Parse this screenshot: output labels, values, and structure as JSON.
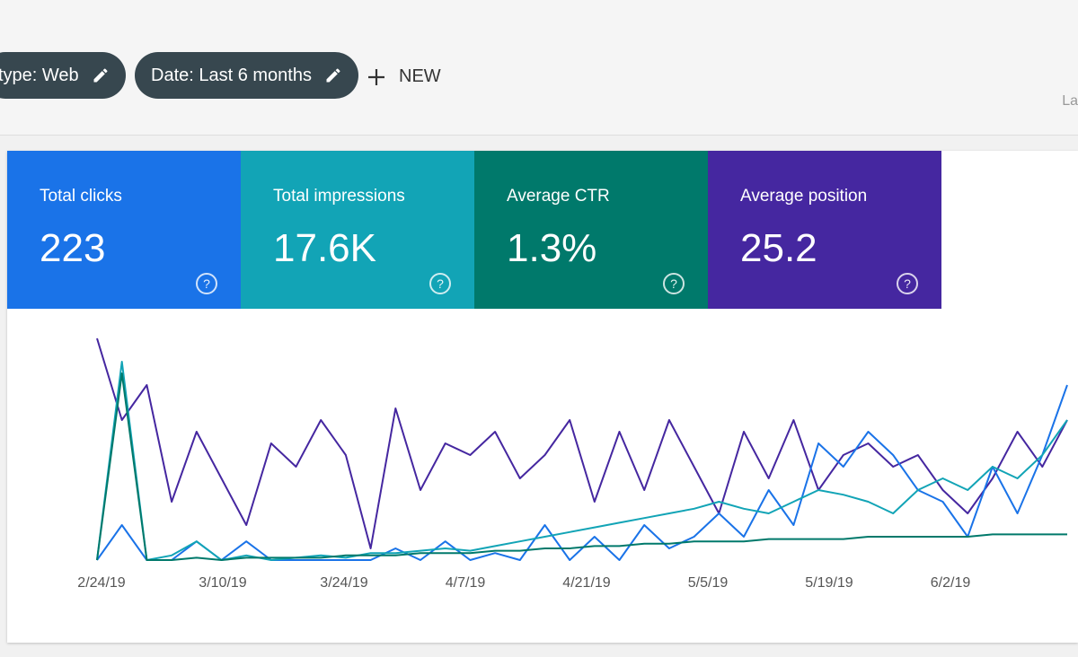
{
  "filters": {
    "type_chip": "type: Web",
    "date_chip": "Date: Last 6 months",
    "new_button": "NEW",
    "cut_text": "La"
  },
  "metrics": [
    {
      "label": "Total clicks",
      "value": "223",
      "color": "#1a73e8"
    },
    {
      "label": "Total impressions",
      "value": "17.6K",
      "color": "#12a4b6"
    },
    {
      "label": "Average CTR",
      "value": "1.3%",
      "color": "#00796b"
    },
    {
      "label": "Average position",
      "value": "25.2",
      "color": "#4527a0"
    }
  ],
  "chart_data": {
    "type": "line",
    "x_labels": [
      "2/24/19",
      "3/10/19",
      "3/24/19",
      "4/7/19",
      "4/21/19",
      "5/5/19",
      "5/19/19",
      "6/2/19"
    ],
    "ylim": [
      0,
      100
    ],
    "series": [
      {
        "color": "#4527a0",
        "values": [
          95,
          60,
          75,
          25,
          55,
          35,
          15,
          50,
          40,
          60,
          45,
          5,
          65,
          30,
          50,
          45,
          55,
          35,
          45,
          60,
          25,
          55,
          30,
          60,
          40,
          20,
          55,
          35,
          60,
          30,
          45,
          50,
          40,
          45,
          30,
          20,
          35,
          55,
          40,
          60
        ]
      },
      {
        "color": "#1a73e8",
        "values": [
          0,
          15,
          0,
          0,
          8,
          0,
          8,
          0,
          0,
          0,
          0,
          0,
          5,
          0,
          8,
          0,
          3,
          0,
          15,
          0,
          10,
          0,
          15,
          5,
          10,
          20,
          10,
          30,
          15,
          50,
          40,
          55,
          45,
          30,
          25,
          10,
          40,
          20,
          45,
          75
        ]
      },
      {
        "color": "#12a4b6",
        "values": [
          0,
          85,
          0,
          2,
          8,
          0,
          2,
          0,
          1,
          2,
          1,
          3,
          3,
          4,
          5,
          4,
          6,
          8,
          10,
          12,
          14,
          16,
          18,
          20,
          22,
          25,
          22,
          20,
          25,
          30,
          28,
          25,
          20,
          30,
          35,
          30,
          40,
          35,
          45,
          60
        ]
      },
      {
        "color": "#00796b",
        "values": [
          0,
          80,
          0,
          0,
          1,
          0,
          1,
          1,
          1,
          1,
          2,
          2,
          2,
          3,
          3,
          3,
          4,
          4,
          5,
          5,
          6,
          6,
          7,
          7,
          8,
          8,
          8,
          9,
          9,
          9,
          9,
          10,
          10,
          10,
          10,
          10,
          11,
          11,
          11,
          11
        ]
      }
    ]
  }
}
